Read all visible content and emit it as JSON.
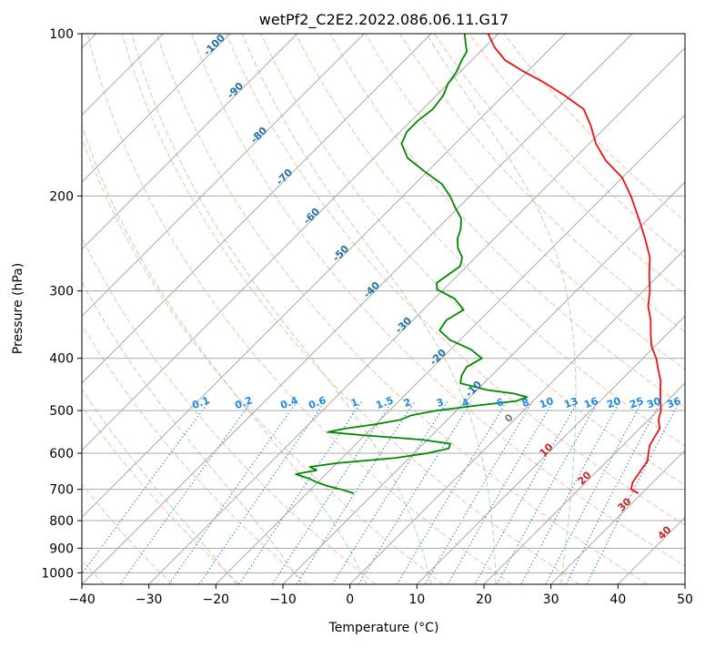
{
  "chart_data": {
    "type": "line",
    "title": "wetPf2_C2E2.2022.086.06.11.G17",
    "xlabel": "Temperature (°C)",
    "ylabel": "Pressure (hPa)",
    "xlim": [
      -40,
      50
    ],
    "ylim": [
      1050,
      100
    ],
    "y_scale": "log",
    "skew": "skew-T",
    "x_ticks": [
      -40,
      -30,
      -20,
      -10,
      0,
      10,
      20,
      30,
      40,
      50
    ],
    "y_ticks": [
      100,
      200,
      300,
      400,
      500,
      600,
      700,
      800,
      900,
      1000
    ],
    "grid": true,
    "series": [
      {
        "role": "temperature",
        "color": "#ee1111",
        "points": [
          [
            29.5,
            712
          ],
          [
            27.8,
            700
          ],
          [
            27.0,
            680
          ],
          [
            26.5,
            650
          ],
          [
            26.0,
            620
          ],
          [
            25.0,
            600
          ],
          [
            24.0,
            580
          ],
          [
            23.5,
            560
          ],
          [
            23.0,
            540
          ],
          [
            21.5,
            520
          ],
          [
            20.5,
            500
          ],
          [
            19.0,
            480
          ],
          [
            17.5,
            460
          ],
          [
            16.0,
            440
          ],
          [
            14.0,
            420
          ],
          [
            12.0,
            400
          ],
          [
            9.5,
            380
          ],
          [
            7.5,
            360
          ],
          [
            5.5,
            340
          ],
          [
            3.0,
            320
          ],
          [
            1.0,
            300
          ],
          [
            -1.5,
            280
          ],
          [
            -4.0,
            260
          ],
          [
            -7.5,
            240
          ],
          [
            -11.5,
            220
          ],
          [
            -16.0,
            200
          ],
          [
            -20.0,
            185
          ],
          [
            -25.0,
            172
          ],
          [
            -29.0,
            160
          ],
          [
            -32.5,
            148
          ],
          [
            -36.0,
            138
          ],
          [
            -41.0,
            130
          ],
          [
            -46.0,
            123
          ],
          [
            -51.0,
            117
          ],
          [
            -55.0,
            112
          ],
          [
            -58.5,
            106
          ],
          [
            -61.5,
            100
          ]
        ]
      },
      {
        "role": "dewpoint",
        "color": "#008800",
        "points": [
          [
            -13.0,
            712
          ],
          [
            -15.5,
            700
          ],
          [
            -18.0,
            690
          ],
          [
            -20.0,
            680
          ],
          [
            -22.0,
            668
          ],
          [
            -24.5,
            656
          ],
          [
            -22.0,
            645
          ],
          [
            -23.5,
            636
          ],
          [
            -20.0,
            626
          ],
          [
            -12.0,
            612
          ],
          [
            -8.0,
            600
          ],
          [
            -5.5,
            588
          ],
          [
            -6.0,
            576
          ],
          [
            -11.0,
            566
          ],
          [
            -20.0,
            556
          ],
          [
            -26.0,
            548
          ],
          [
            -24.0,
            540
          ],
          [
            -20.0,
            530
          ],
          [
            -17.0,
            520
          ],
          [
            -16.0,
            510
          ],
          [
            -13.0,
            500
          ],
          [
            -8.0,
            490
          ],
          [
            -2.5,
            480
          ],
          [
            -1.5,
            472
          ],
          [
            -4.0,
            465
          ],
          [
            -8.5,
            458
          ],
          [
            -13.5,
            445
          ],
          [
            -14.5,
            430
          ],
          [
            -15.0,
            415
          ],
          [
            -14.0,
            400
          ],
          [
            -17.0,
            385
          ],
          [
            -21.5,
            370
          ],
          [
            -24.5,
            355
          ],
          [
            -25.0,
            340
          ],
          [
            -24.0,
            325
          ],
          [
            -27.0,
            310
          ],
          [
            -31.0,
            298
          ],
          [
            -32.0,
            290
          ],
          [
            -31.5,
            280
          ],
          [
            -31.0,
            270
          ],
          [
            -32.0,
            260
          ],
          [
            -34.0,
            250
          ],
          [
            -35.5,
            240
          ],
          [
            -36.5,
            230
          ],
          [
            -38.0,
            220
          ],
          [
            -40.5,
            210
          ],
          [
            -43.0,
            200
          ],
          [
            -46.0,
            190
          ],
          [
            -50.5,
            180
          ],
          [
            -55.0,
            170
          ],
          [
            -58.0,
            160
          ],
          [
            -59.0,
            152
          ],
          [
            -59.0,
            145
          ],
          [
            -58.5,
            138
          ],
          [
            -59.0,
            130
          ],
          [
            -60.0,
            124
          ],
          [
            -60.5,
            118
          ],
          [
            -61.5,
            112
          ],
          [
            -62.0,
            108
          ],
          [
            -63.5,
            104
          ],
          [
            -65.0,
            100
          ]
        ]
      }
    ],
    "isotherms": [
      -140,
      -130,
      -120,
      -110,
      -100,
      -90,
      -80,
      -70,
      -60,
      -50,
      -40,
      -30,
      -20,
      -10,
      0,
      10,
      20,
      30,
      40,
      50
    ],
    "dry_adiabats": [
      -100,
      -90,
      -80,
      -70,
      -60,
      -50,
      -40,
      -30,
      -20,
      -10,
      0,
      10,
      20,
      30,
      40,
      50,
      60,
      70,
      80,
      90,
      100,
      110,
      120,
      130,
      140
    ],
    "dry_adiabat_labels": [
      "-100",
      "-90",
      "-80",
      "-70",
      "-60",
      "-50",
      "-40",
      "-30",
      "-20",
      "-10",
      "0",
      "10",
      "20",
      "30",
      "40"
    ],
    "moist_adiabats": [
      -20,
      -10,
      0,
      10,
      20,
      30
    ],
    "mixing_ratios": [
      0.1,
      0.2,
      0.4,
      0.6,
      1,
      1.5,
      2,
      3,
      4,
      6,
      8,
      10,
      13,
      16,
      20,
      25,
      30,
      36
    ],
    "mixing_ratio_labels": [
      "0.1",
      "0.2",
      "0.4",
      "0.6",
      "1",
      "1.5",
      "2",
      "3",
      "4",
      "6",
      "8",
      "10",
      "13",
      "16",
      "20",
      "25",
      "30",
      "36"
    ],
    "colors": {
      "isotherm": "#aaaaaa",
      "isobar": "#aaaaaa",
      "dry_adiabat": "#f4a582",
      "moist_adiabat": "#9ed09a",
      "mixing_ratio": "#1e7fd8",
      "dry_label": "#1f6fa8",
      "warm_label": "#cc2222",
      "mixing_label": "#1e88e5"
    }
  }
}
